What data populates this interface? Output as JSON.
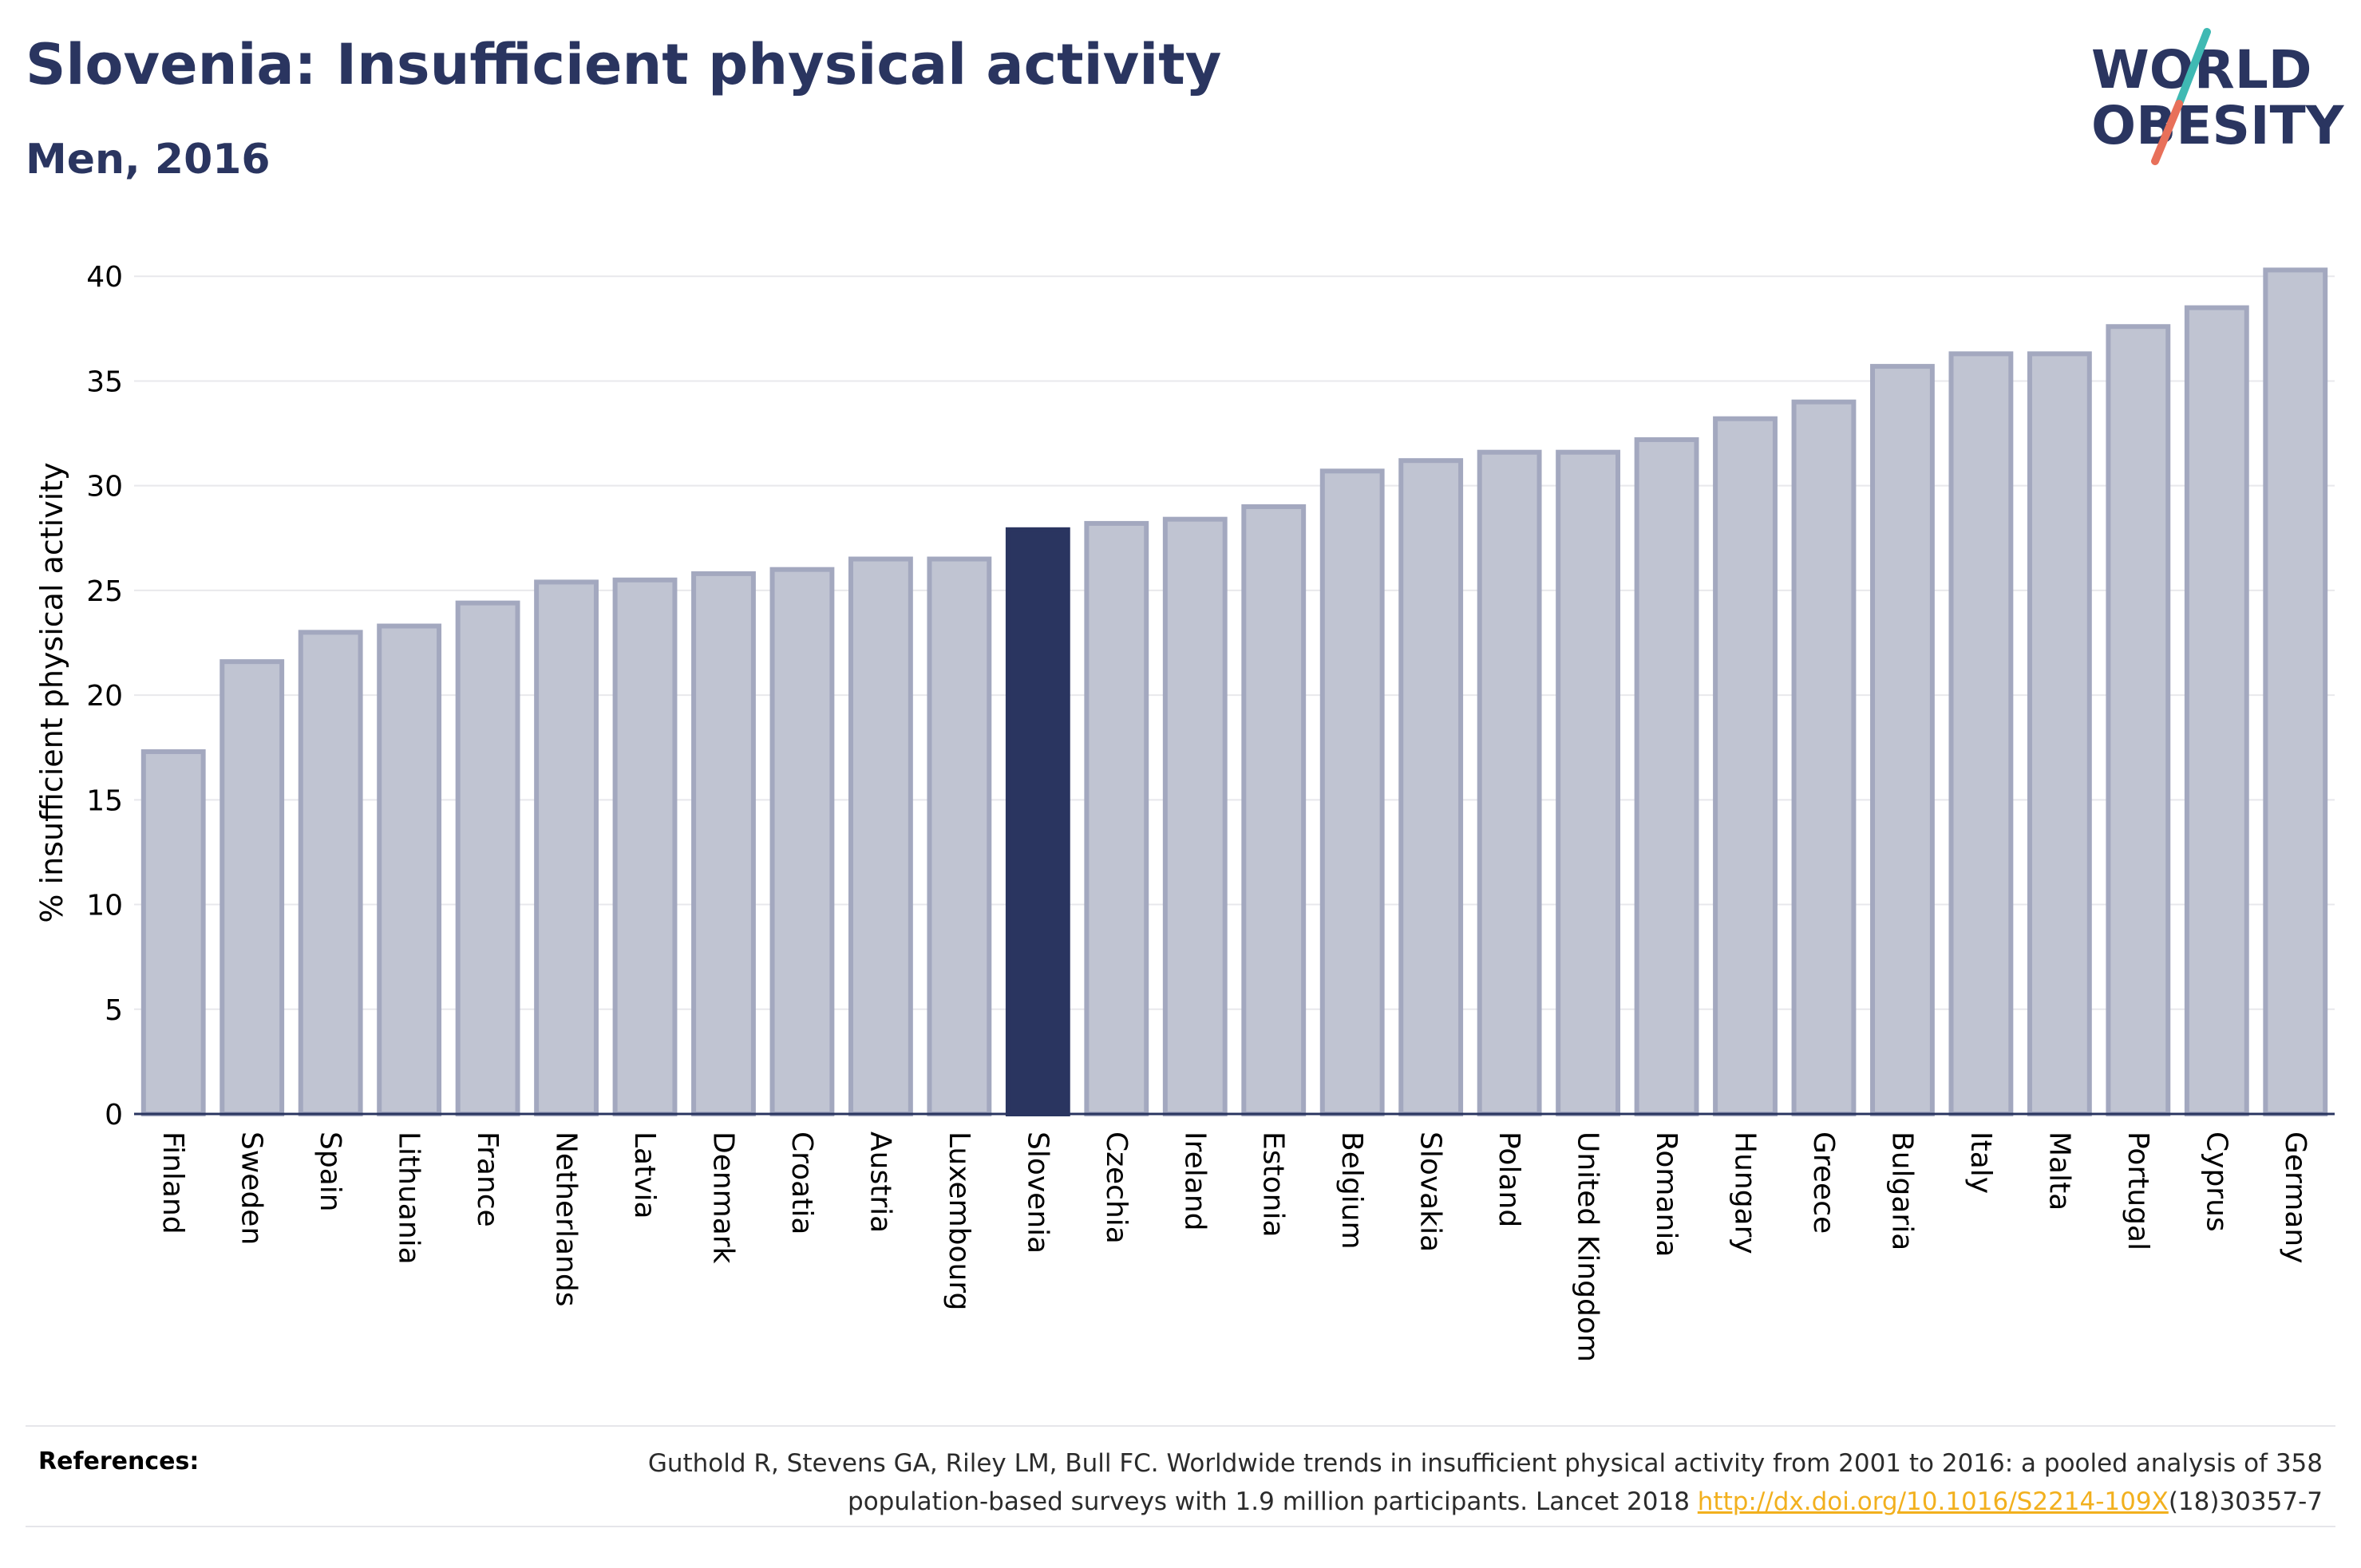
{
  "header": {
    "title": "Slovenia: Insufficient physical activity",
    "subtitle": "Men, 2016"
  },
  "logo": {
    "line1": "WORLD",
    "line2": "OBESITY",
    "colors": {
      "text": "#2a3560",
      "slash_top": "#3fb9b3",
      "slash_bottom": "#e8705a"
    }
  },
  "chart_data": {
    "type": "bar",
    "title": "Slovenia: Insufficient physical activity",
    "subtitle": "Men, 2016",
    "ylabel": "% insufficient physical activity",
    "xlabel": "",
    "ylim": [
      0,
      41
    ],
    "yticks": [
      0,
      5,
      10,
      15,
      20,
      25,
      30,
      35,
      40
    ],
    "grid": true,
    "highlight": "Slovenia",
    "colors": {
      "bar": "#c0c4d2",
      "bar_stroke": "#a3a8bf",
      "highlight": "#2a3560",
      "grid": "#e8e8ec",
      "axis": "#2a3560"
    },
    "categories": [
      "Finland",
      "Sweden",
      "Spain",
      "Lithuania",
      "France",
      "Netherlands",
      "Latvia",
      "Denmark",
      "Croatia",
      "Austria",
      "Luxembourg",
      "Slovenia",
      "Czechia",
      "Ireland",
      "Estonia",
      "Belgium",
      "Slovakia",
      "Poland",
      "United Kingdom",
      "Romania",
      "Hungary",
      "Greece",
      "Bulgaria",
      "Italy",
      "Malta",
      "Portugal",
      "Cyprus",
      "Germany"
    ],
    "values": [
      17.3,
      21.6,
      23.0,
      23.3,
      24.4,
      25.4,
      25.5,
      25.8,
      26.0,
      26.5,
      26.5,
      27.9,
      28.2,
      28.4,
      29.0,
      30.7,
      31.2,
      31.6,
      31.6,
      32.2,
      33.2,
      34.0,
      35.7,
      36.3,
      36.3,
      37.6,
      38.5,
      40.3
    ]
  },
  "references": {
    "label": "References:",
    "text_line1": "Guthold R, Stevens GA, Riley LM, Bull FC. Worldwide trends in insufficient physical activity from 2001 to 2016: a pooled analysis of 358",
    "text_line2_pre": "population-based surveys with 1.9 million participants. Lancet 2018 ",
    "link": "http://dx.doi.org/10.1016/S2214-109X",
    "text_line2_post": "(18)30357-7"
  }
}
